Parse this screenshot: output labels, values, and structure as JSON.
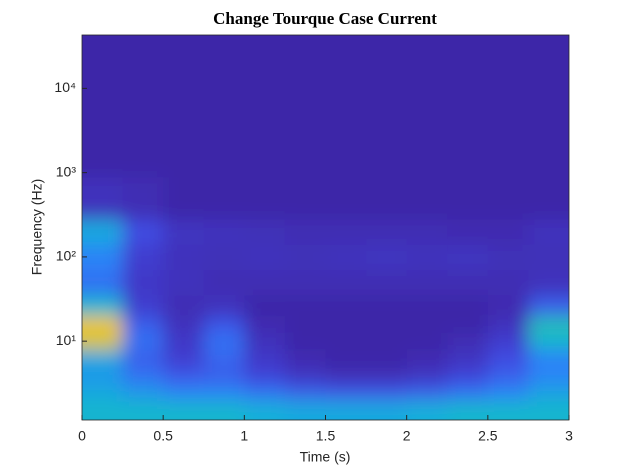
{
  "chart_data": {
    "type": "heatmap",
    "title": "Change Tourque Case Current",
    "xlabel": "Time (s)",
    "ylabel": "Frequency (Hz)",
    "x": [
      0.125,
      0.375,
      0.625,
      0.875,
      1.125,
      1.375,
      1.625,
      1.875,
      2.125,
      2.375,
      2.625,
      2.875
    ],
    "y": [
      1.6,
      2.5,
      4,
      6.3,
      10,
      16,
      25,
      50,
      100,
      200,
      400,
      2000,
      20000
    ],
    "values": [
      [
        0.45,
        0.45,
        0.45,
        0.45,
        0.42,
        0.4,
        0.4,
        0.4,
        0.42,
        0.45,
        0.45,
        0.45
      ],
      [
        0.4,
        0.35,
        0.3,
        0.3,
        0.25,
        0.2,
        0.18,
        0.18,
        0.2,
        0.25,
        0.3,
        0.38
      ],
      [
        0.35,
        0.25,
        0.18,
        0.2,
        0.12,
        0.06,
        0.03,
        0.03,
        0.06,
        0.12,
        0.2,
        0.3
      ],
      [
        0.4,
        0.2,
        0.1,
        0.22,
        0.08,
        0.02,
        0,
        0,
        0.02,
        0.06,
        0.15,
        0.3
      ],
      [
        0.8,
        0.25,
        0.08,
        0.25,
        0.05,
        0,
        0,
        0,
        0,
        0.03,
        0.1,
        0.45
      ],
      [
        0.85,
        0.2,
        0.05,
        0.18,
        0.02,
        0,
        0,
        0,
        0,
        0,
        0.05,
        0.5
      ],
      [
        0.45,
        0.1,
        0.03,
        0.05,
        0,
        0,
        0,
        0,
        0,
        0,
        0.02,
        0.2
      ],
      [
        0.25,
        0.08,
        0.05,
        0.03,
        0.03,
        0.03,
        0.03,
        0.03,
        0.03,
        0.03,
        0.03,
        0.05
      ],
      [
        0.3,
        0.1,
        0.05,
        0.04,
        0.05,
        0.04,
        0.05,
        0.06,
        0.05,
        0.06,
        0.04,
        0.04
      ],
      [
        0.4,
        0.15,
        0.06,
        0.05,
        0.04,
        0.03,
        0.03,
        0.03,
        0.03,
        0.02,
        0.02,
        0.05
      ],
      [
        0.05,
        0.03,
        0,
        0,
        0,
        0,
        0,
        0,
        0,
        0,
        0,
        0
      ],
      [
        0,
        0,
        0,
        0,
        0,
        0,
        0,
        0,
        0,
        0,
        0,
        0
      ],
      [
        0,
        0,
        0,
        0,
        0,
        0,
        0,
        0,
        0,
        0,
        0,
        0
      ]
    ],
    "colormap": [
      "#3e26a8",
      "#4248e0",
      "#2d7ff9",
      "#12b2d8",
      "#38c49c",
      "#a7bf3f",
      "#f3c532",
      "#f9fb0e"
    ],
    "xlim": [
      0,
      3
    ],
    "xticks": [
      0,
      0.5,
      1,
      1.5,
      2,
      2.5,
      3
    ],
    "ylim": [
      1.16,
      43000
    ],
    "yticks": [
      {
        "value": 10,
        "label": "10¹"
      },
      {
        "value": 100,
        "label": "10²"
      },
      {
        "value": 1000,
        "label": "10³"
      },
      {
        "value": 10000,
        "label": "10⁴"
      }
    ],
    "ylog": true
  }
}
